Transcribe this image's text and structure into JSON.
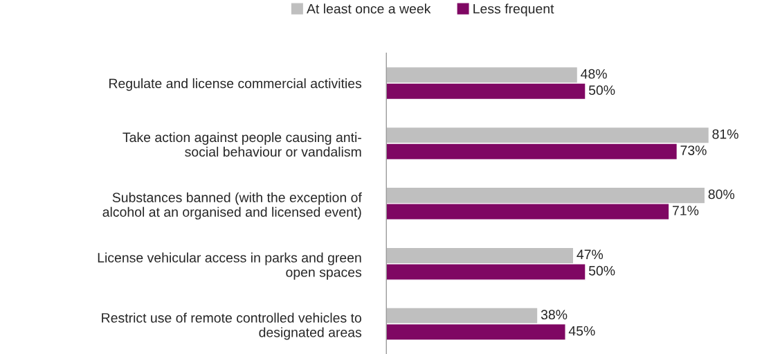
{
  "chart_data": {
    "type": "bar",
    "orientation": "horizontal",
    "categories": [
      "Regulate and license commercial activities",
      "Take action against people causing anti-\nsocial behaviour or vandalism",
      "Substances banned (with the exception of\nalcohol at an organised and licensed event)",
      "License vehicular access in parks and green\nopen spaces",
      "Restrict use of remote controlled vehicles to\ndesignated areas"
    ],
    "series": [
      {
        "name": "At least once a week",
        "color": "#bfbfbf",
        "values": [
          48,
          81,
          80,
          47,
          38
        ],
        "value_labels": [
          "48%",
          "81%",
          "80%",
          "47%",
          "38%"
        ]
      },
      {
        "name": "Less frequent",
        "color": "#7f0763",
        "values": [
          50,
          73,
          71,
          50,
          45
        ],
        "value_labels": [
          "50%",
          "73%",
          "71%",
          "50%",
          "45%"
        ]
      }
    ],
    "tick_labels": "y",
    "legend": "top",
    "grid": false
  }
}
